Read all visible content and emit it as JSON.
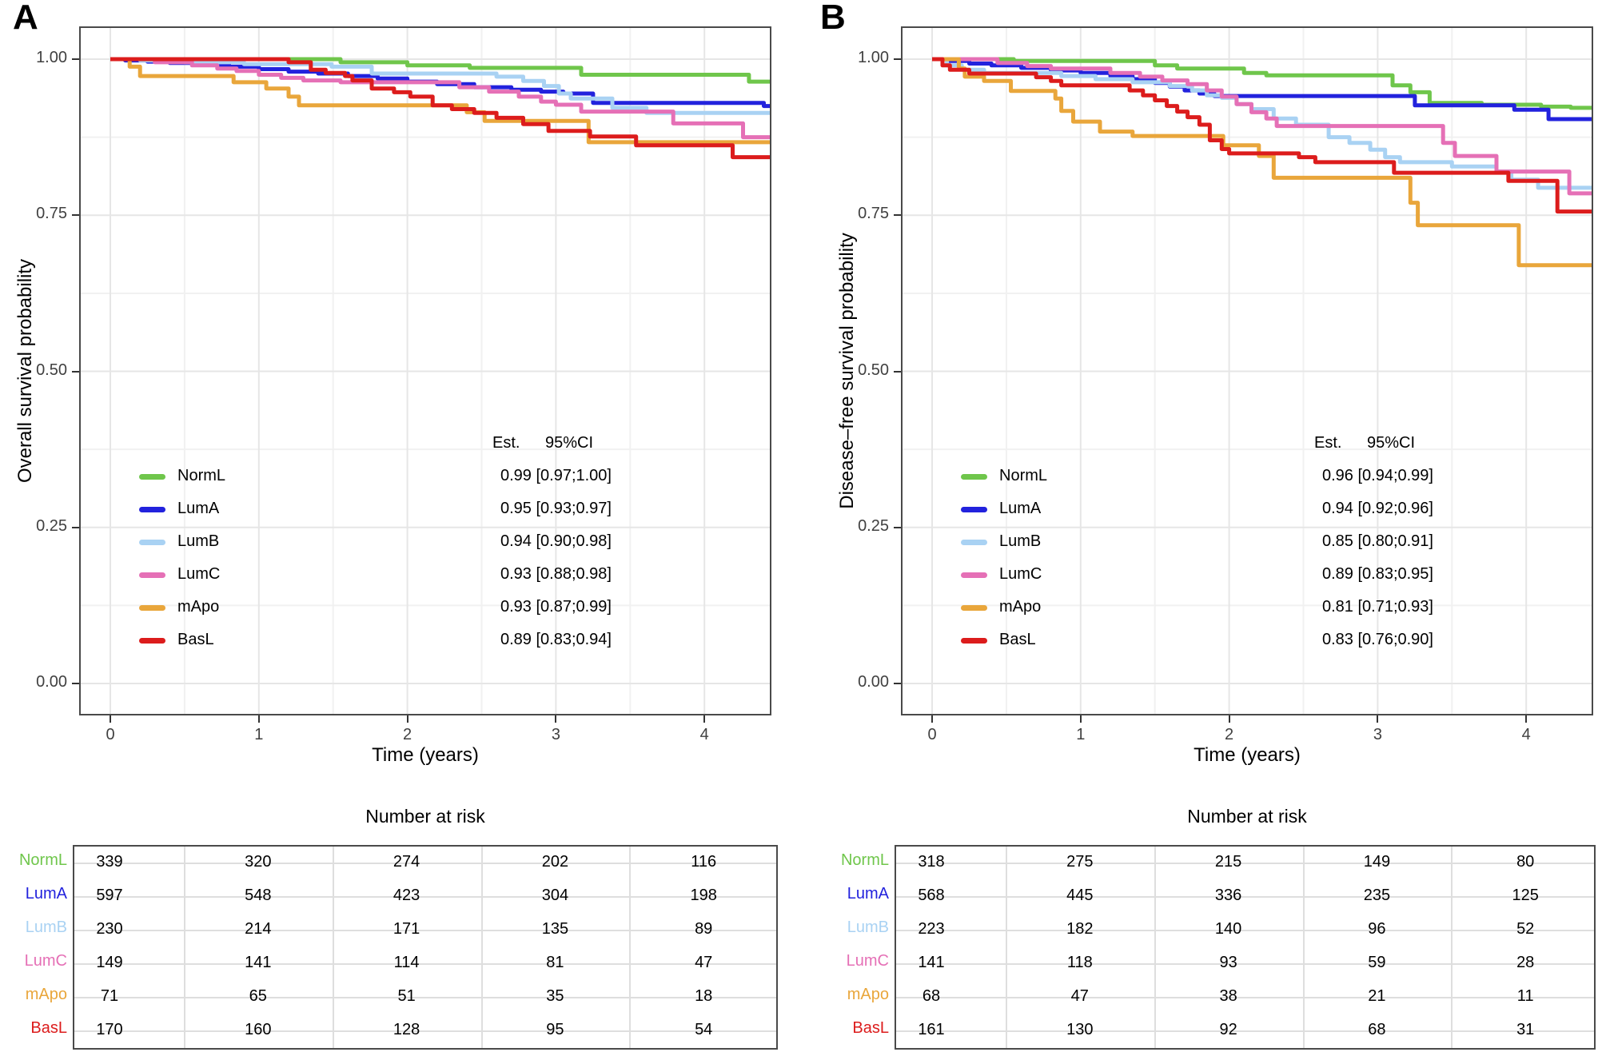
{
  "chart_data": [
    {
      "type": "line",
      "subtype": "kaplan-meier-step",
      "panel": "A",
      "ylabel": "Overall survival probability",
      "xlabel": "Time (years)",
      "xlim": [
        0,
        4.45
      ],
      "ylim": [
        0,
        1.05
      ],
      "x_ticks": [
        0,
        1,
        2,
        3,
        4
      ],
      "y_ticks": [
        1.0,
        0.75,
        0.5,
        0.25,
        0.0
      ],
      "y_tick_labels": [
        "1.00",
        "0.75",
        "0.50",
        "0.25",
        "0.00"
      ],
      "grid": true,
      "legend_position": "inside-lower-left",
      "legend_header": [
        "Est.",
        "95%CI"
      ],
      "series": [
        {
          "name": "NormL",
          "color": "#6FC64B",
          "est": "0.99 [0.97;1.00]",
          "points": [
            [
              0,
              1
            ],
            [
              1.55,
              0.995
            ],
            [
              2.0,
              0.99
            ],
            [
              2.42,
              0.986
            ],
            [
              3.17,
              0.975
            ],
            [
              4.3,
              0.964
            ]
          ]
        },
        {
          "name": "LumA",
          "color": "#2222DD",
          "est": "0.95 [0.93;0.97]",
          "points": [
            [
              0,
              1
            ],
            [
              0.1,
              0.998
            ],
            [
              0.25,
              0.996
            ],
            [
              0.4,
              0.994
            ],
            [
              0.6,
              0.991
            ],
            [
              0.8,
              0.988
            ],
            [
              1.0,
              0.984
            ],
            [
              1.2,
              0.98
            ],
            [
              1.4,
              0.977
            ],
            [
              1.6,
              0.973
            ],
            [
              1.8,
              0.969
            ],
            [
              2.0,
              0.964
            ],
            [
              2.2,
              0.96
            ],
            [
              2.45,
              0.955
            ],
            [
              2.7,
              0.951
            ],
            [
              2.9,
              0.948
            ],
            [
              3.05,
              0.945
            ],
            [
              3.25,
              0.93
            ],
            [
              4.4,
              0.925
            ]
          ]
        },
        {
          "name": "LumB",
          "color": "#A9D2F3",
          "est": "0.94 [0.90;0.98]",
          "points": [
            [
              0,
              1
            ],
            [
              0.2,
              0.998
            ],
            [
              0.5,
              0.995
            ],
            [
              0.9,
              0.992
            ],
            [
              1.49,
              0.988
            ],
            [
              1.76,
              0.977
            ],
            [
              2.6,
              0.972
            ],
            [
              2.78,
              0.965
            ],
            [
              2.92,
              0.957
            ],
            [
              3.02,
              0.945
            ],
            [
              3.1,
              0.937
            ],
            [
              3.38,
              0.922
            ],
            [
              3.61,
              0.914
            ]
          ]
        },
        {
          "name": "LumC",
          "color": "#E570B6",
          "est": "0.93 [0.88;0.98]",
          "points": [
            [
              0,
              1
            ],
            [
              0.3,
              0.995
            ],
            [
              0.55,
              0.99
            ],
            [
              0.72,
              0.985
            ],
            [
              0.85,
              0.981
            ],
            [
              1.0,
              0.975
            ],
            [
              1.15,
              0.97
            ],
            [
              1.3,
              0.966
            ],
            [
              1.55,
              0.963
            ],
            [
              2.35,
              0.955
            ],
            [
              2.55,
              0.948
            ],
            [
              2.75,
              0.94
            ],
            [
              2.9,
              0.932
            ],
            [
              3.0,
              0.927
            ],
            [
              3.17,
              0.916
            ],
            [
              3.79,
              0.897
            ],
            [
              4.26,
              0.875
            ]
          ]
        },
        {
          "name": "mApo",
          "color": "#E9A63B",
          "est": "0.93 [0.87;0.99]",
          "points": [
            [
              0,
              1
            ],
            [
              0.13,
              0.988
            ],
            [
              0.2,
              0.973
            ],
            [
              0.83,
              0.963
            ],
            [
              1.05,
              0.953
            ],
            [
              1.2,
              0.94
            ],
            [
              1.27,
              0.926
            ],
            [
              2.4,
              0.915
            ],
            [
              2.52,
              0.901
            ],
            [
              3.22,
              0.867
            ]
          ]
        },
        {
          "name": "BasL",
          "color": "#DC1C1C",
          "est": "0.89 [0.83;0.94]",
          "points": [
            [
              0,
              1
            ],
            [
              1.2,
              0.995
            ],
            [
              1.35,
              0.983
            ],
            [
              1.45,
              0.978
            ],
            [
              1.58,
              0.973
            ],
            [
              1.63,
              0.966
            ],
            [
              1.76,
              0.953
            ],
            [
              1.91,
              0.947
            ],
            [
              2.02,
              0.94
            ],
            [
              2.17,
              0.926
            ],
            [
              2.3,
              0.92
            ],
            [
              2.45,
              0.914
            ],
            [
              2.6,
              0.906
            ],
            [
              2.78,
              0.896
            ],
            [
              2.95,
              0.885
            ],
            [
              3.23,
              0.876
            ],
            [
              3.54,
              0.862
            ],
            [
              4.19,
              0.843
            ]
          ]
        }
      ],
      "risk_table": {
        "title": "Number at risk",
        "time_points": [
          0,
          1,
          2,
          3,
          4
        ],
        "rows": [
          {
            "name": "NormL",
            "counts": [
              "339",
              "320",
              "274",
              "202",
              "116"
            ]
          },
          {
            "name": "LumA",
            "counts": [
              "597",
              "548",
              "423",
              "304",
              "198"
            ]
          },
          {
            "name": "LumB",
            "counts": [
              "230",
              "214",
              "171",
              "135",
              "89"
            ]
          },
          {
            "name": "LumC",
            "counts": [
              "149",
              "141",
              "114",
              "81",
              "47"
            ]
          },
          {
            "name": "mApo",
            "counts": [
              "71",
              "65",
              "51",
              "35",
              "18"
            ]
          },
          {
            "name": "BasL",
            "counts": [
              "170",
              "160",
              "128",
              "95",
              "54"
            ]
          }
        ]
      }
    },
    {
      "type": "line",
      "subtype": "kaplan-meier-step",
      "panel": "B",
      "ylabel": "Disease–free survival probability",
      "xlabel": "Time (years)",
      "xlim": [
        0,
        4.45
      ],
      "ylim": [
        0,
        1.05
      ],
      "x_ticks": [
        0,
        1,
        2,
        3,
        4
      ],
      "y_ticks": [
        1.0,
        0.75,
        0.5,
        0.25,
        0.0
      ],
      "y_tick_labels": [
        "1.00",
        "0.75",
        "0.50",
        "0.25",
        "0.00"
      ],
      "grid": true,
      "legend_position": "inside-lower-left",
      "legend_header": [
        "Est.",
        "95%CI"
      ],
      "series": [
        {
          "name": "NormL",
          "color": "#6FC64B",
          "est": "0.96 [0.94;0.99]",
          "points": [
            [
              0,
              1
            ],
            [
              0.55,
              0.997
            ],
            [
              1.5,
              0.99
            ],
            [
              1.65,
              0.985
            ],
            [
              2.1,
              0.978
            ],
            [
              2.25,
              0.974
            ],
            [
              3.1,
              0.958
            ],
            [
              3.22,
              0.947
            ],
            [
              3.35,
              0.93
            ],
            [
              3.7,
              0.927
            ],
            [
              4.1,
              0.924
            ],
            [
              4.3,
              0.922
            ]
          ]
        },
        {
          "name": "LumA",
          "color": "#2222DD",
          "est": "0.94 [0.92;0.96]",
          "points": [
            [
              0,
              1
            ],
            [
              0.1,
              0.997
            ],
            [
              0.25,
              0.993
            ],
            [
              0.4,
              0.99
            ],
            [
              0.6,
              0.986
            ],
            [
              0.8,
              0.982
            ],
            [
              1.0,
              0.978
            ],
            [
              1.2,
              0.973
            ],
            [
              1.35,
              0.968
            ],
            [
              1.5,
              0.962
            ],
            [
              1.6,
              0.956
            ],
            [
              1.7,
              0.95
            ],
            [
              1.8,
              0.945
            ],
            [
              1.9,
              0.941
            ],
            [
              3.25,
              0.926
            ],
            [
              3.92,
              0.919
            ],
            [
              4.15,
              0.904
            ]
          ]
        },
        {
          "name": "LumB",
          "color": "#A9D2F3",
          "est": "0.85 [0.80;0.91]",
          "points": [
            [
              0,
              1
            ],
            [
              0.1,
              0.99
            ],
            [
              0.2,
              0.983
            ],
            [
              0.35,
              0.978
            ],
            [
              0.87,
              0.973
            ],
            [
              1.1,
              0.968
            ],
            [
              1.35,
              0.963
            ],
            [
              1.6,
              0.957
            ],
            [
              1.75,
              0.95
            ],
            [
              1.85,
              0.942
            ],
            [
              1.95,
              0.938
            ],
            [
              2.05,
              0.928
            ],
            [
              2.15,
              0.92
            ],
            [
              2.3,
              0.905
            ],
            [
              2.45,
              0.895
            ],
            [
              2.67,
              0.875
            ],
            [
              2.81,
              0.866
            ],
            [
              2.95,
              0.855
            ],
            [
              3.05,
              0.843
            ],
            [
              3.15,
              0.835
            ],
            [
              3.5,
              0.828
            ],
            [
              3.8,
              0.82
            ],
            [
              3.9,
              0.807
            ],
            [
              4.08,
              0.794
            ]
          ]
        },
        {
          "name": "LumC",
          "color": "#E570B6",
          "est": "0.89 [0.83;0.95]",
          "points": [
            [
              0,
              1
            ],
            [
              0.44,
              0.994
            ],
            [
              0.64,
              0.989
            ],
            [
              0.8,
              0.985
            ],
            [
              1.2,
              0.978
            ],
            [
              1.4,
              0.972
            ],
            [
              1.55,
              0.966
            ],
            [
              1.72,
              0.96
            ],
            [
              1.85,
              0.95
            ],
            [
              1.95,
              0.94
            ],
            [
              2.05,
              0.928
            ],
            [
              2.15,
              0.915
            ],
            [
              2.25,
              0.905
            ],
            [
              2.32,
              0.893
            ],
            [
              3.44,
              0.866
            ],
            [
              3.52,
              0.845
            ],
            [
              3.8,
              0.82
            ],
            [
              4.29,
              0.785
            ]
          ]
        },
        {
          "name": "mApo",
          "color": "#E9A63B",
          "est": "0.81 [0.71;0.93]",
          "points": [
            [
              0,
              1
            ],
            [
              0.18,
              0.985
            ],
            [
              0.22,
              0.972
            ],
            [
              0.35,
              0.965
            ],
            [
              0.53,
              0.949
            ],
            [
              0.83,
              0.937
            ],
            [
              0.87,
              0.917
            ],
            [
              0.95,
              0.9
            ],
            [
              1.13,
              0.884
            ],
            [
              1.35,
              0.877
            ],
            [
              1.96,
              0.862
            ],
            [
              2.2,
              0.845
            ],
            [
              2.3,
              0.81
            ],
            [
              3.22,
              0.77
            ],
            [
              3.27,
              0.734
            ],
            [
              3.95,
              0.67
            ]
          ]
        },
        {
          "name": "BasL",
          "color": "#DC1C1C",
          "est": "0.83 [0.76;0.90]",
          "points": [
            [
              0,
              1
            ],
            [
              0.07,
              0.99
            ],
            [
              0.12,
              0.983
            ],
            [
              0.25,
              0.977
            ],
            [
              0.7,
              0.971
            ],
            [
              0.8,
              0.965
            ],
            [
              0.87,
              0.958
            ],
            [
              1.33,
              0.95
            ],
            [
              1.42,
              0.942
            ],
            [
              1.5,
              0.934
            ],
            [
              1.58,
              0.925
            ],
            [
              1.65,
              0.916
            ],
            [
              1.72,
              0.907
            ],
            [
              1.8,
              0.895
            ],
            [
              1.87,
              0.87
            ],
            [
              1.95,
              0.856
            ],
            [
              2.0,
              0.849
            ],
            [
              2.47,
              0.843
            ],
            [
              2.58,
              0.835
            ],
            [
              3.11,
              0.818
            ],
            [
              3.88,
              0.805
            ],
            [
              4.21,
              0.756
            ]
          ]
        }
      ],
      "risk_table": {
        "title": "Number at risk",
        "time_points": [
          0,
          1,
          2,
          3,
          4
        ],
        "rows": [
          {
            "name": "NormL",
            "counts": [
              "318",
              "275",
              "215",
              "149",
              "80"
            ]
          },
          {
            "name": "LumA",
            "counts": [
              "568",
              "445",
              "336",
              "235",
              "125"
            ]
          },
          {
            "name": "LumB",
            "counts": [
              "223",
              "182",
              "140",
              "96",
              "52"
            ]
          },
          {
            "name": "LumC",
            "counts": [
              "141",
              "118",
              "93",
              "59",
              "28"
            ]
          },
          {
            "name": "mApo",
            "counts": [
              "68",
              "47",
              "38",
              "21",
              "11"
            ]
          },
          {
            "name": "BasL",
            "counts": [
              "161",
              "130",
              "92",
              "68",
              "31"
            ]
          }
        ]
      }
    }
  ]
}
